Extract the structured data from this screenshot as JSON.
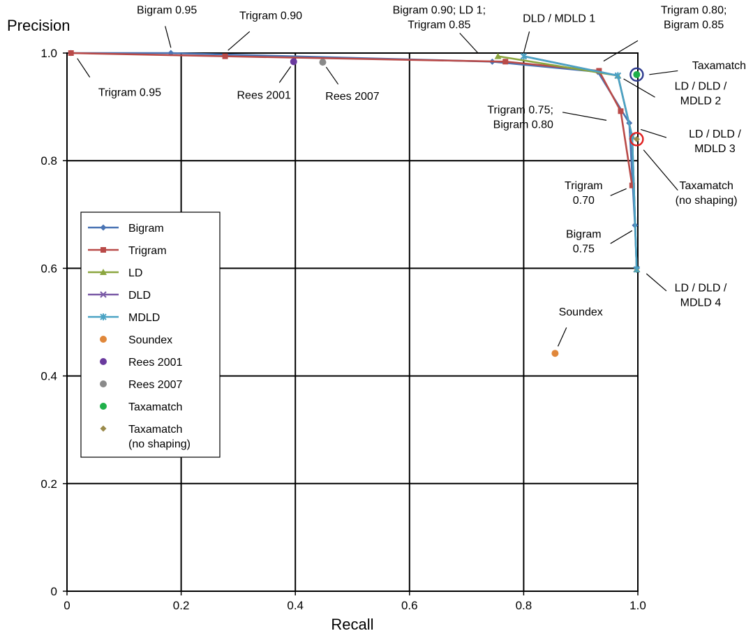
{
  "chart_data": {
    "type": "line",
    "xlabel": "Recall",
    "ylabel": "Precision",
    "xlim": [
      0,
      1
    ],
    "ylim": [
      0,
      1
    ],
    "xticks": [
      "0",
      "0.2",
      "0.4",
      "0.6",
      "0.8",
      "1.0"
    ],
    "yticks": [
      "0",
      "0.2",
      "0.4",
      "0.6",
      "0.8",
      "1.0"
    ],
    "grid": true,
    "legend_position": "center-left",
    "series": [
      {
        "name": "Bigram",
        "color": "#4a74b4",
        "marker": "diamond",
        "line": true,
        "x": [
          0.007,
          0.182,
          0.745,
          0.93,
          0.985,
          0.995,
          0.998
        ],
        "y": [
          1.0,
          1.0,
          0.984,
          0.965,
          0.87,
          0.68,
          0.6
        ]
      },
      {
        "name": "Trigram",
        "color": "#b94a48",
        "marker": "square",
        "line": true,
        "x": [
          0.007,
          0.277,
          0.768,
          0.932,
          0.97,
          0.99
        ],
        "y": [
          1.0,
          0.994,
          0.984,
          0.967,
          0.892,
          0.754
        ]
      },
      {
        "name": "LD",
        "color": "#8ba63f",
        "marker": "triangle",
        "line": true,
        "x": [
          0.755,
          0.965,
          0.99,
          0.998
        ],
        "y": [
          0.994,
          0.958,
          0.845,
          0.598
        ]
      },
      {
        "name": "DLD",
        "color": "#7a5aa6",
        "marker": "x",
        "line": true,
        "x": [
          0.8,
          0.965,
          0.99,
          0.998
        ],
        "y": [
          0.994,
          0.958,
          0.845,
          0.598
        ]
      },
      {
        "name": "MDLD",
        "color": "#4aa3c4",
        "marker": "star",
        "line": true,
        "x": [
          0.8,
          0.965,
          0.99,
          0.998
        ],
        "y": [
          0.994,
          0.958,
          0.845,
          0.598
        ]
      },
      {
        "name": "Soundex",
        "color": "#e0873a",
        "marker": "circle",
        "line": false,
        "x": [
          0.855
        ],
        "y": [
          0.442
        ]
      },
      {
        "name": "Rees 2001",
        "color": "#6a3a9e",
        "marker": "circle",
        "line": false,
        "x": [
          0.397
        ],
        "y": [
          0.984
        ]
      },
      {
        "name": "Rees 2007",
        "color": "#8a8a8a",
        "marker": "circle",
        "line": false,
        "x": [
          0.448
        ],
        "y": [
          0.983
        ]
      },
      {
        "name": "Taxamatch",
        "color": "#1fb04a",
        "marker": "circle",
        "line": false,
        "x": [
          0.998
        ],
        "y": [
          0.96
        ]
      },
      {
        "name": "Taxamatch\n(no shaping)",
        "color": "#9a8a4a",
        "marker": "diamond",
        "line": false,
        "x": [
          0.998
        ],
        "y": [
          0.84
        ]
      }
    ],
    "highlight_circles": [
      {
        "x": 0.998,
        "y": 0.96,
        "color": "#2e3b8f"
      },
      {
        "x": 0.998,
        "y": 0.84,
        "color": "#e02020"
      }
    ],
    "annotations": [
      {
        "lines": [
          "Bigram 0.95"
        ],
        "anchor": "middle",
        "tx": 0.175,
        "ty": 1.073,
        "lx1": 0.172,
        "ly1": 1.05,
        "lx2": 0.182,
        "ly2": 1.01
      },
      {
        "lines": [
          "Trigram 0.90"
        ],
        "anchor": "middle",
        "tx": 0.357,
        "ty": 1.063,
        "lx1": 0.32,
        "ly1": 1.04,
        "lx2": 0.282,
        "ly2": 1.005
      },
      {
        "lines": [
          "Trigram 0.95"
        ],
        "anchor": "middle",
        "tx": 0.11,
        "ty": 0.92,
        "lx1": 0.018,
        "ly1": 0.99,
        "lx2": 0.04,
        "ly2": 0.955
      },
      {
        "lines": [
          "Rees 2001"
        ],
        "anchor": "middle",
        "tx": 0.345,
        "ty": 0.915,
        "lx1": 0.372,
        "ly1": 0.945,
        "lx2": 0.392,
        "ly2": 0.975
      },
      {
        "lines": [
          "Rees 2007"
        ],
        "anchor": "middle",
        "tx": 0.5,
        "ty": 0.913,
        "lx1": 0.454,
        "ly1": 0.974,
        "lx2": 0.475,
        "ly2": 0.942
      },
      {
        "lines": [
          "Bigram 0.90; LD 1;",
          "Trigram 0.85"
        ],
        "anchor": "middle",
        "tx": 0.652,
        "ty": 1.073,
        "lx1": 0.688,
        "ly1": 1.037,
        "lx2": 0.72,
        "ly2": 1.0
      },
      {
        "lines": [
          "DLD / MDLD 1"
        ],
        "anchor": "middle",
        "tx": 0.862,
        "ty": 1.058,
        "lx1": 0.81,
        "ly1": 1.04,
        "lx2": 0.8,
        "ly2": 1.0
      },
      {
        "lines": [
          "Trigram 0.80;",
          "Bigram 0.85"
        ],
        "anchor": "middle",
        "tx": 1.098,
        "ty": 1.073,
        "lx1": 1.0,
        "ly1": 1.023,
        "lx2": 0.94,
        "ly2": 0.985
      },
      {
        "lines": [
          "Taxamatch"
        ],
        "anchor": "start",
        "tx": 1.095,
        "ty": 0.97,
        "lx1": 1.07,
        "ly1": 0.967,
        "lx2": 1.02,
        "ly2": 0.96
      },
      {
        "lines": [
          "LD / DLD /",
          "MDLD 2"
        ],
        "anchor": "middle",
        "tx": 1.11,
        "ty": 0.932,
        "lx1": 1.03,
        "ly1": 0.918,
        "lx2": 0.975,
        "ly2": 0.952
      },
      {
        "lines": [
          "Trigram  0.75;",
          "Bigram  0.80"
        ],
        "anchor": "end",
        "tx": 0.852,
        "ty": 0.888,
        "lx1": 0.868,
        "ly1": 0.89,
        "lx2": 0.945,
        "ly2": 0.875
      },
      {
        "lines": [
          "LD / DLD /",
          "MDLD 3"
        ],
        "anchor": "middle",
        "tx": 1.135,
        "ty": 0.843,
        "lx1": 1.05,
        "ly1": 0.843,
        "lx2": 1.005,
        "ly2": 0.858
      },
      {
        "lines": [
          "Taxamatch",
          "(no shaping)"
        ],
        "anchor": "middle",
        "tx": 1.12,
        "ty": 0.747,
        "lx1": 1.07,
        "ly1": 0.745,
        "lx2": 1.01,
        "ly2": 0.82
      },
      {
        "lines": [
          "Trigram",
          "0.70"
        ],
        "anchor": "middle",
        "tx": 0.905,
        "ty": 0.747,
        "lx1": 0.952,
        "ly1": 0.735,
        "lx2": 0.98,
        "ly2": 0.748
      },
      {
        "lines": [
          "Bigram",
          "0.75"
        ],
        "anchor": "middle",
        "tx": 0.905,
        "ty": 0.657,
        "lx1": 0.952,
        "ly1": 0.646,
        "lx2": 0.99,
        "ly2": 0.67
      },
      {
        "lines": [
          "LD / DLD /",
          "MDLD 4"
        ],
        "anchor": "middle",
        "tx": 1.11,
        "ty": 0.557,
        "lx1": 1.015,
        "ly1": 0.59,
        "lx2": 1.05,
        "ly2": 0.558
      },
      {
        "lines": [
          "Soundex"
        ],
        "anchor": "middle",
        "tx": 0.9,
        "ty": 0.512,
        "lx1": 0.86,
        "ly1": 0.455,
        "lx2": 0.875,
        "ly2": 0.49
      }
    ]
  }
}
